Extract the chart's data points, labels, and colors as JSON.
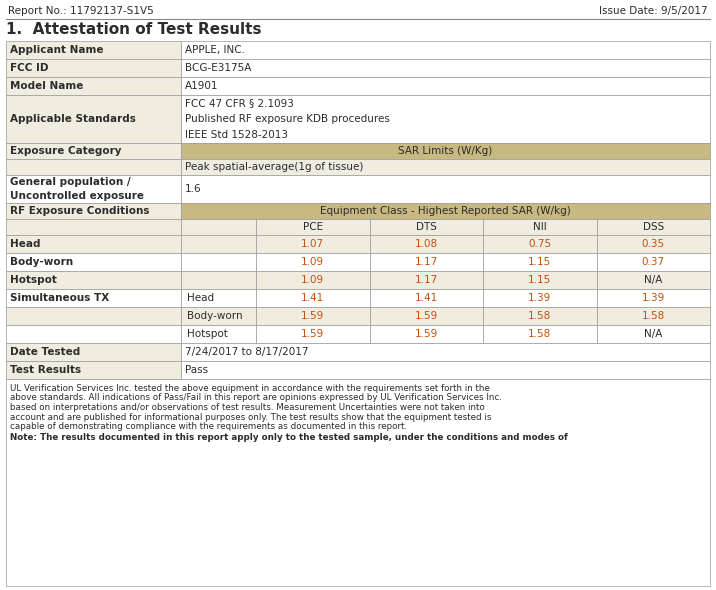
{
  "report_no": "Report No.: 11792137-S1V5",
  "issue_date": "Issue Date: 9/5/2017",
  "section_title": "1.  Attestation of Test Results",
  "rows_info": [
    {
      "label": "Applicant Name",
      "value": "APPLE, INC.",
      "shaded": true
    },
    {
      "label": "FCC ID",
      "value": "BCG-E3175A",
      "shaded": false
    },
    {
      "label": "Model Name",
      "value": "A1901",
      "shaded": true
    },
    {
      "label": "Applicable Standards",
      "value": "FCC 47 CFR § 2.1093\nPublished RF exposure KDB procedures\nIEEE Std 1528-2013",
      "shaded": false
    }
  ],
  "exposure_category_label": "Exposure Category",
  "sar_limits_header": "SAR Limits (W/Kg)",
  "peak_spatial": "Peak spatial-average(1g of tissue)",
  "general_population_label": "General population /\nUncontrolled exposure",
  "general_population_value": "1.6",
  "rf_exposure_label": "RF Exposure Conditions",
  "equipment_class_header": "Equipment Class - Highest Reported SAR (W/kg)",
  "columns": [
    "PCE",
    "DTS",
    "NII",
    "DSS"
  ],
  "data_rows": [
    {
      "label": "Head",
      "sublabel": "",
      "values": [
        "1.07",
        "1.08",
        "0.75",
        "0.35"
      ]
    },
    {
      "label": "Body-worn",
      "sublabel": "",
      "values": [
        "1.09",
        "1.17",
        "1.15",
        "0.37"
      ]
    },
    {
      "label": "Hotspot",
      "sublabel": "",
      "values": [
        "1.09",
        "1.17",
        "1.15",
        "N/A"
      ]
    },
    {
      "label": "Simultaneous TX",
      "sublabel": "Head",
      "values": [
        "1.41",
        "1.41",
        "1.39",
        "1.39"
      ]
    },
    {
      "label": "",
      "sublabel": "Body-worn",
      "values": [
        "1.59",
        "1.59",
        "1.58",
        "1.58"
      ]
    },
    {
      "label": "",
      "sublabel": "Hotspot",
      "values": [
        "1.59",
        "1.59",
        "1.58",
        "N/A"
      ]
    }
  ],
  "date_tested_label": "Date Tested",
  "date_tested_value": "7/24/2017 to 8/17/2017",
  "test_results_label": "Test Results",
  "test_results_value": "Pass",
  "footnote_lines": [
    "UL Verification Services Inc. tested the above equipment in accordance with the requirements set forth in the",
    "above standards. All indications of Pass/Fail in this report are opinions expressed by UL Verification Services Inc.",
    "based on interpretations and/or observations of test results. Measurement Uncertainties were not taken into",
    "account and are published for informational purposes only. The test results show that the equipment tested is",
    "capable of demonstrating compliance with the requirements as documented in this report."
  ],
  "note_line": "Note: The results documented in this report apply only to the tested sample, under the conditions and modes of",
  "header_bg": "#c8b882",
  "white_bg": "#ffffff",
  "shaded_bg": "#f0ece0",
  "orange_text": "#c8500a",
  "dark_text": "#2c2c2c",
  "border_color": "#999999",
  "tan_bg": "#c8b882"
}
